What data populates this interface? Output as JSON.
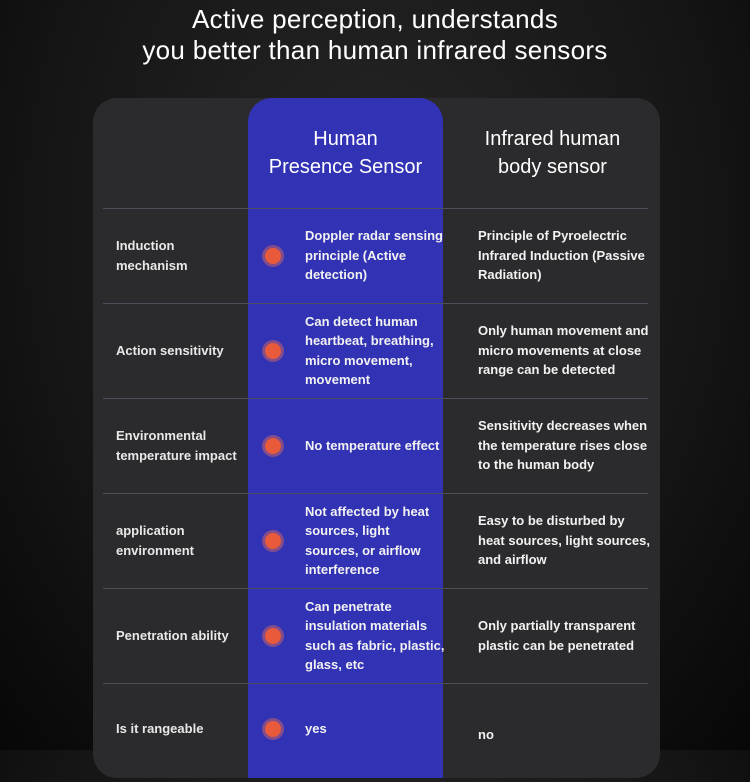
{
  "title": {
    "line1": "Active perception, understands",
    "line2": "you better than human infrared sensors"
  },
  "columns": {
    "presence": "Human Presence Sensor",
    "presence_l1": "Human",
    "presence_l2": "Presence Sensor",
    "infrared_l1": "Infrared human",
    "infrared_l2": "body sensor"
  },
  "colors": {
    "accent_blue": "#3232b4",
    "dot": "#e85a3a",
    "panel": "#2b2b2d"
  },
  "rows": [
    {
      "label": "Induction mechanism",
      "presence": "Doppler radar sensing principle (Active detection)",
      "infrared": "Principle of Pyroelectric Infrared Induction (Passive Radiation)"
    },
    {
      "label": "Action sensitivity",
      "presence": "Can detect human heartbeat, breathing, micro movement, movement",
      "infrared": "Only human movement and micro movements at close range can be detected"
    },
    {
      "label": "Environmental temperature impact",
      "presence": "No temperature effect",
      "infrared": "Sensitivity decreases when the temperature rises close to the human body"
    },
    {
      "label": "application environment",
      "presence": "Not affected by heat sources, light sources, or airflow interference",
      "infrared": "Easy to be disturbed by heat sources, light sources, and airflow"
    },
    {
      "label": "Penetration ability",
      "presence": "Can penetrate insulation materials such as fabric, plastic, glass, etc",
      "infrared": "Only partially transparent plastic can be penetrated"
    },
    {
      "label": "Is it rangeable",
      "presence": "yes",
      "infrared": "no"
    }
  ]
}
